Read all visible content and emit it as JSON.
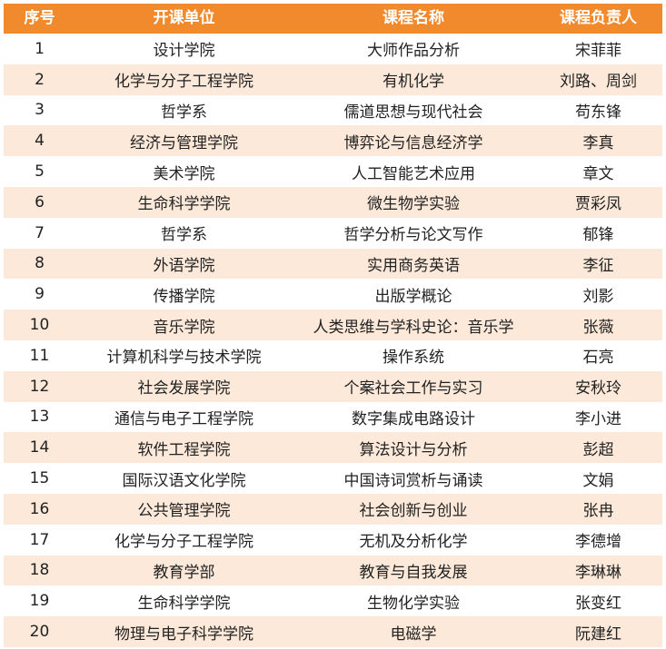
{
  "colors": {
    "header_bg": "#F08A2C",
    "header_text": "#ffffff",
    "stripe_bg": "#FCE9DA",
    "row_bg": "#ffffff",
    "body_text": "#222222"
  },
  "table": {
    "headers": [
      "序号",
      "开课单位",
      "课程名称",
      "课程负责人"
    ],
    "rows": [
      [
        "1",
        "设计学院",
        "大师作品分析",
        "宋菲菲"
      ],
      [
        "2",
        "化学与分子工程学院",
        "有机化学",
        "刘路、周剑"
      ],
      [
        "3",
        "哲学系",
        "儒道思想与现代社会",
        "苟东锋"
      ],
      [
        "4",
        "经济与管理学院",
        "博弈论与信息经济学",
        "李真"
      ],
      [
        "5",
        "美术学院",
        "人工智能艺术应用",
        "章文"
      ],
      [
        "6",
        "生命科学学院",
        "微生物学实验",
        "贾彩凤"
      ],
      [
        "7",
        "哲学系",
        "哲学分析与论文写作",
        "郁锋"
      ],
      [
        "8",
        "外语学院",
        "实用商务英语",
        "李征"
      ],
      [
        "9",
        "传播学院",
        "出版学概论",
        "刘影"
      ],
      [
        "10",
        "音乐学院",
        "人类思维与学科史论：音乐学",
        "张薇"
      ],
      [
        "11",
        "计算机科学与技术学院",
        "操作系统",
        "石亮"
      ],
      [
        "12",
        "社会发展学院",
        "个案社会工作与实习",
        "安秋玲"
      ],
      [
        "13",
        "通信与电子工程学院",
        "数字集成电路设计",
        "李小进"
      ],
      [
        "14",
        "软件工程学院",
        "算法设计与分析",
        "彭超"
      ],
      [
        "15",
        "国际汉语文化学院",
        "中国诗词赏析与诵读",
        "文娟"
      ],
      [
        "16",
        "公共管理学院",
        "社会创新与创业",
        "张冉"
      ],
      [
        "17",
        "化学与分子工程学院",
        "无机及分析化学",
        "李德增"
      ],
      [
        "18",
        "教育学部",
        "教育与自我发展",
        "李琳琳"
      ],
      [
        "19",
        "生命科学学院",
        "生物化学实验",
        "张变红"
      ],
      [
        "20",
        "物理与电子科学学院",
        "电磁学",
        "阮建红"
      ]
    ]
  }
}
